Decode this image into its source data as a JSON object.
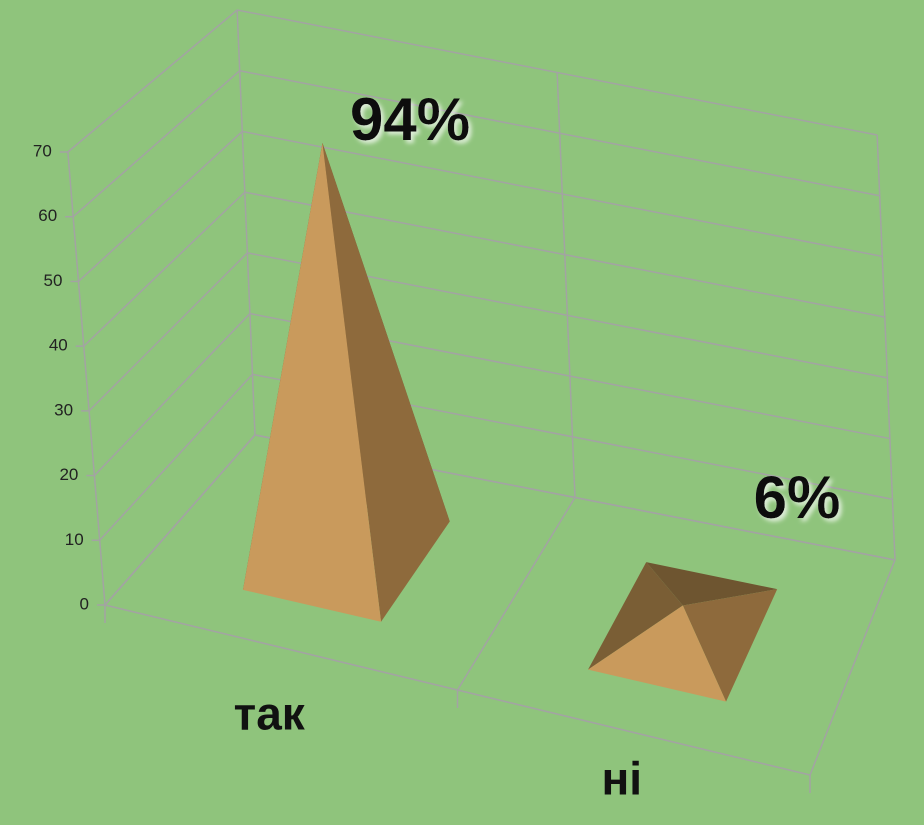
{
  "chart_data": {
    "type": "pyramid3d",
    "categories": [
      "так",
      "ні"
    ],
    "values": [
      66,
      4
    ],
    "color": "#c99a5c",
    "ylim": [
      0,
      70
    ],
    "yticks": [
      0,
      10,
      20,
      30,
      40,
      50,
      60,
      70
    ],
    "grid": true,
    "annotations": [
      "94%",
      "6%"
    ]
  }
}
